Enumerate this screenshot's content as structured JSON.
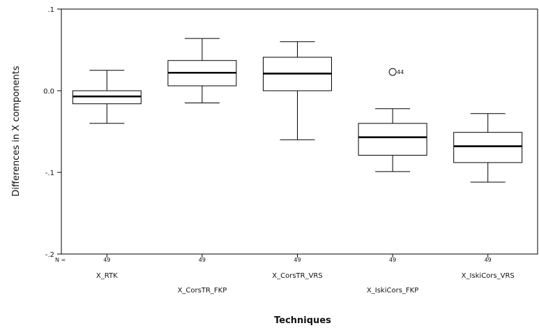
{
  "chart_data": {
    "type": "boxplot",
    "xlabel": "Techniques",
    "ylabel": "Differences in X components",
    "ylim": [
      -0.2,
      0.1
    ],
    "yticks": [
      {
        "value": 0.1,
        "label": ".1"
      },
      {
        "value": 0.0,
        "label": "0.0"
      },
      {
        "value": -0.1,
        "label": "-.1"
      },
      {
        "value": -0.2,
        "label": "-.2"
      }
    ],
    "n_label": "N =",
    "grid": false,
    "categories": [
      "X_RTK",
      "X_CorsTR_FKP",
      "X_CorsTR_VRS",
      "X_IskiCors_FKP",
      "X_IskiCors_VRS"
    ],
    "boxes": [
      {
        "category": "X_RTK",
        "n": "49",
        "whisker_low": -0.04,
        "q1": -0.016,
        "median": -0.007,
        "q3": 0.0,
        "whisker_high": 0.025,
        "outliers": []
      },
      {
        "category": "X_CorsTR_FKP",
        "n": "49",
        "whisker_low": -0.015,
        "q1": 0.006,
        "median": 0.022,
        "q3": 0.037,
        "whisker_high": 0.064,
        "outliers": []
      },
      {
        "category": "X_CorsTR_VRS",
        "n": "49",
        "whisker_low": -0.06,
        "q1": 0.0,
        "median": 0.021,
        "q3": 0.041,
        "whisker_high": 0.06,
        "outliers": []
      },
      {
        "category": "X_IskiCors_FKP",
        "n": "49",
        "whisker_low": -0.099,
        "q1": -0.079,
        "median": -0.057,
        "q3": -0.04,
        "whisker_high": -0.022,
        "outliers": [
          {
            "value": 0.023,
            "label": "44"
          }
        ]
      },
      {
        "category": "X_IskiCors_VRS",
        "n": "49",
        "whisker_low": -0.112,
        "q1": -0.088,
        "median": -0.068,
        "q3": -0.051,
        "whisker_high": -0.028,
        "outliers": []
      }
    ]
  }
}
